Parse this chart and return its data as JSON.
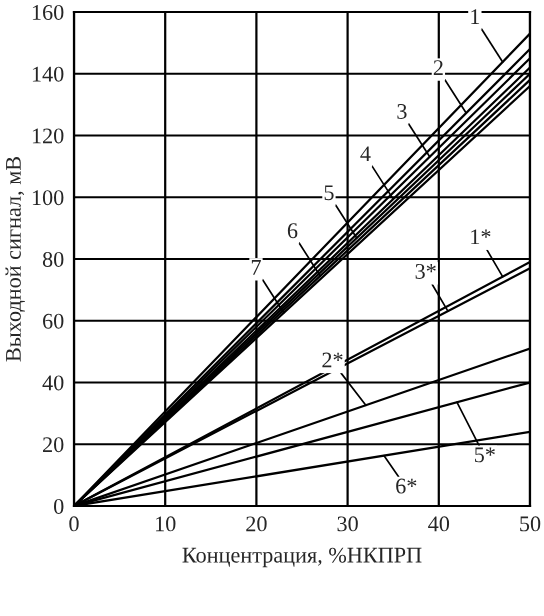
{
  "chart_data": {
    "type": "line",
    "xlabel": "Концентрация, %НКПРП",
    "ylabel": "Выходной сигнал, мВ",
    "x": [
      0,
      50
    ],
    "series": [
      {
        "color": "#000000",
        "values": [
          0,
          153
        ]
      },
      {
        "color": "#000000",
        "values": [
          0,
          148
        ]
      },
      {
        "color": "#000000",
        "values": [
          0,
          145
        ]
      },
      {
        "color": "#000000",
        "values": [
          0,
          142
        ]
      },
      {
        "color": "#000000",
        "values": [
          0,
          140
        ]
      },
      {
        "color": "#000000",
        "values": [
          0,
          138
        ]
      },
      {
        "color": "#000000",
        "values": [
          0,
          136
        ]
      },
      {
        "color": "#000000",
        "values": [
          0,
          79
        ]
      },
      {
        "color": "#000000",
        "values": [
          0,
          77
        ]
      },
      {
        "color": "#000000",
        "values": [
          0,
          51
        ]
      },
      {
        "color": "#000000",
        "values": [
          0,
          40
        ]
      },
      {
        "color": "#000000",
        "values": [
          0,
          24
        ]
      }
    ],
    "annotations": [
      {
        "text": "1",
        "x": 47,
        "y": 143.8
      },
      {
        "text": "2",
        "x": 43,
        "y": 127.3
      },
      {
        "text": "3",
        "x": 39,
        "y": 113.1
      },
      {
        "text": "4",
        "x": 35,
        "y": 99.4
      },
      {
        "text": "5",
        "x": 31,
        "y": 86.8
      },
      {
        "text": "6",
        "x": 27,
        "y": 74.5
      },
      {
        "text": "7",
        "x": 23,
        "y": 62.6
      },
      {
        "text": "1*",
        "x": 47,
        "y": 74.3
      },
      {
        "text": "3*",
        "x": 41,
        "y": 63.1
      },
      {
        "text": "2*",
        "x": 32,
        "y": 32.6
      },
      {
        "text": "5*",
        "x": 42,
        "y": 33.6
      },
      {
        "text": "6*",
        "x": 34,
        "y": 16.3
      }
    ],
    "xlim": [
      0,
      50
    ],
    "ylim": [
      0,
      160
    ],
    "xticks": [
      0,
      10,
      20,
      30,
      40,
      50
    ],
    "yticks": [
      0,
      20,
      40,
      60,
      80,
      100,
      120,
      140,
      160
    ],
    "grid": true,
    "marker": "none",
    "line_style": "solid"
  }
}
